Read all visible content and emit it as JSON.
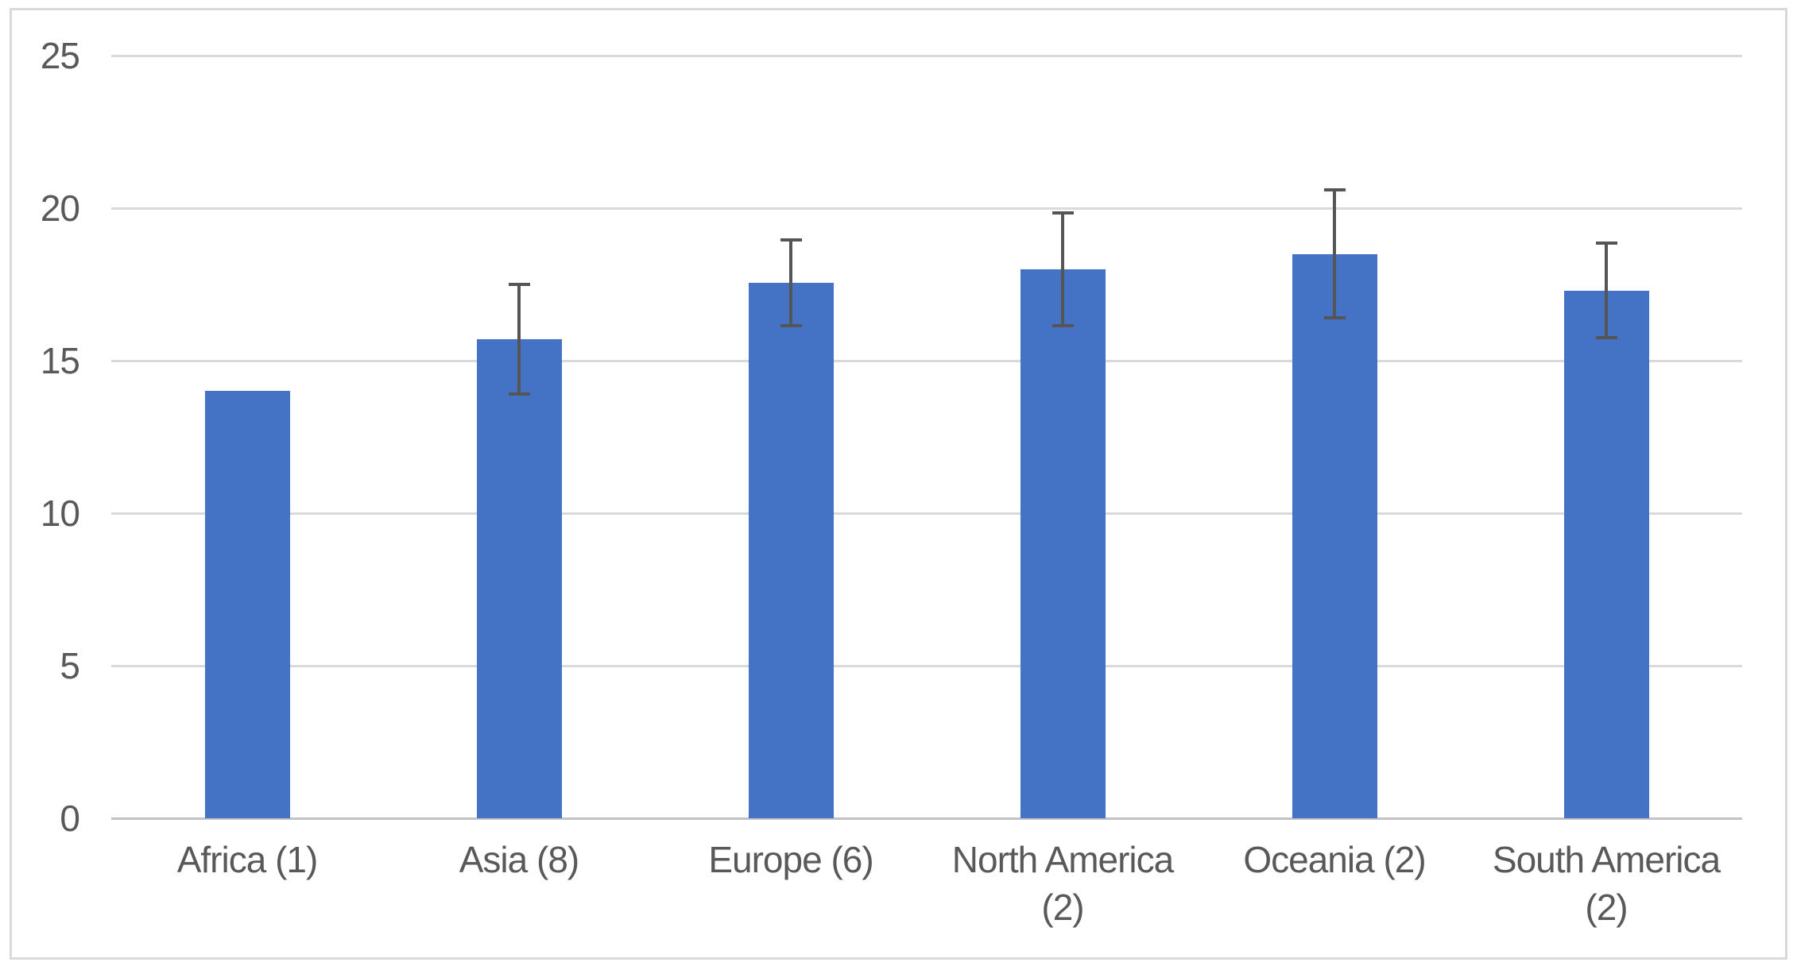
{
  "chart_data": {
    "type": "bar",
    "title": "",
    "xlabel": "",
    "ylabel": "",
    "categories": [
      "Africa (1)",
      "Asia (8)",
      "Europe (6)",
      "North America (2)",
      "Oceania (2)",
      "South America (2)"
    ],
    "values": [
      14.0,
      15.7,
      17.55,
      18.0,
      18.5,
      17.3
    ],
    "error_bars": [
      null,
      1.8,
      1.4,
      1.85,
      2.1,
      1.55
    ],
    "ylim": [
      0,
      25
    ],
    "yticks": [
      0,
      5,
      10,
      15,
      20,
      25
    ],
    "grid": true,
    "legend": "none",
    "colors": {
      "bar": "#4472C4",
      "error_bar": "#555555",
      "gridline": "#d9d9d9",
      "axis_line": "#c3c3c3",
      "tick_label": "#595959",
      "frame_border": "#d9d9d9",
      "background": "#ffffff"
    }
  }
}
